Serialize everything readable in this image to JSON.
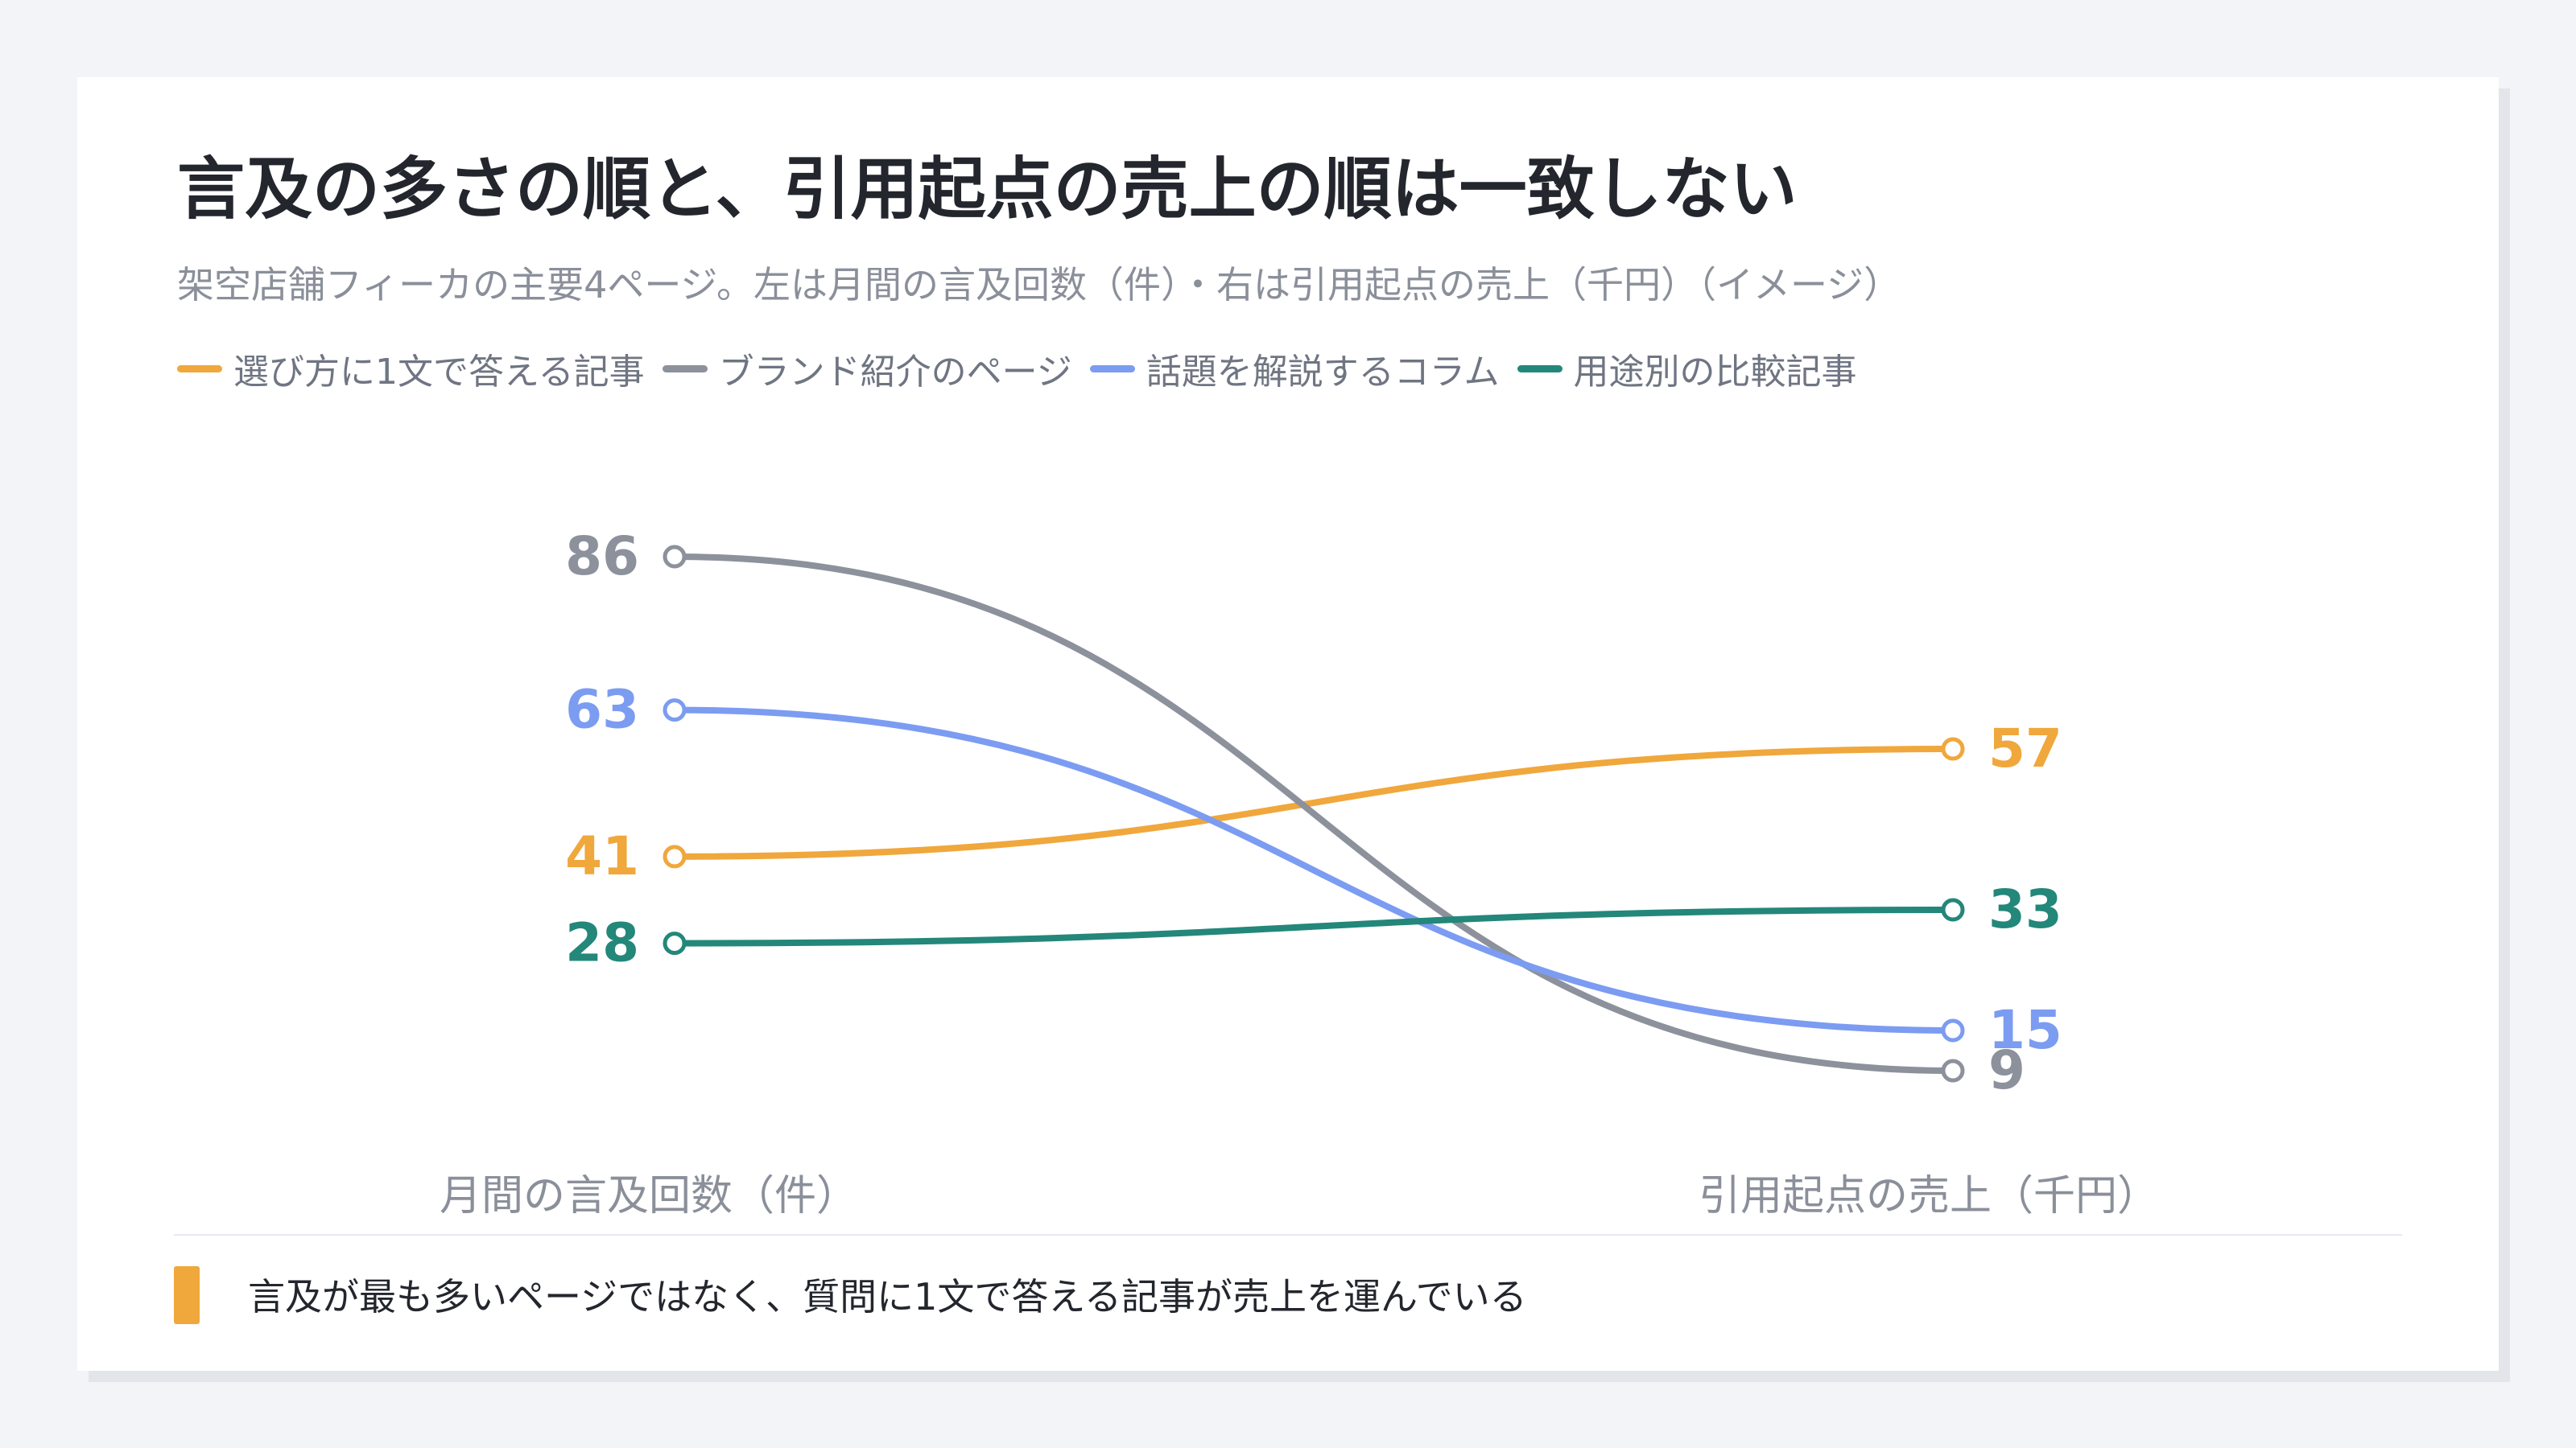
{
  "title": "言及の多さの順と、引用起点の売上の順は一致しない",
  "subtitle": "架空店舗フィーカの主要4ページ。左は月間の言及回数（件）・右は引用起点の売上（千円）（イメージ）",
  "legend": [
    {
      "label": "選び方に1文で答える記事",
      "color": "#f0a73c"
    },
    {
      "label": "ブランド紹介のページ",
      "color": "#8c919c"
    },
    {
      "label": "話題を解説するコラム",
      "color": "#7c9cf2"
    },
    {
      "label": "用途別の比較記事",
      "color": "#23877a"
    }
  ],
  "axis_captions": {
    "left": "月間の言及回数（件）",
    "right": "引用起点の売上（千円）"
  },
  "note": {
    "text": "言及が最も多いページではなく、質問に1文で答える記事が売上を運んでいる",
    "color": "#f0a73c"
  },
  "chart_data": {
    "type": "line",
    "subtype": "slope",
    "categories": [
      "月間の言及回数（件）",
      "引用起点の売上（千円）"
    ],
    "series": [
      {
        "name": "選び方に1文で答える記事",
        "values": [
          41,
          57
        ],
        "color": "#f0a73c"
      },
      {
        "name": "ブランド紹介のページ",
        "values": [
          86,
          9
        ],
        "color": "#8c919c"
      },
      {
        "name": "話題を解説するコラム",
        "values": [
          63,
          15
        ],
        "color": "#7c9cf2"
      },
      {
        "name": "用途別の比較記事",
        "values": [
          28,
          33
        ],
        "color": "#23877a"
      }
    ],
    "left_axis": {
      "unit": "件",
      "range": [
        9,
        86
      ]
    },
    "right_axis": {
      "unit": "千円",
      "range": [
        9,
        57
      ]
    },
    "grid": false,
    "legend_position": "top-left"
  }
}
